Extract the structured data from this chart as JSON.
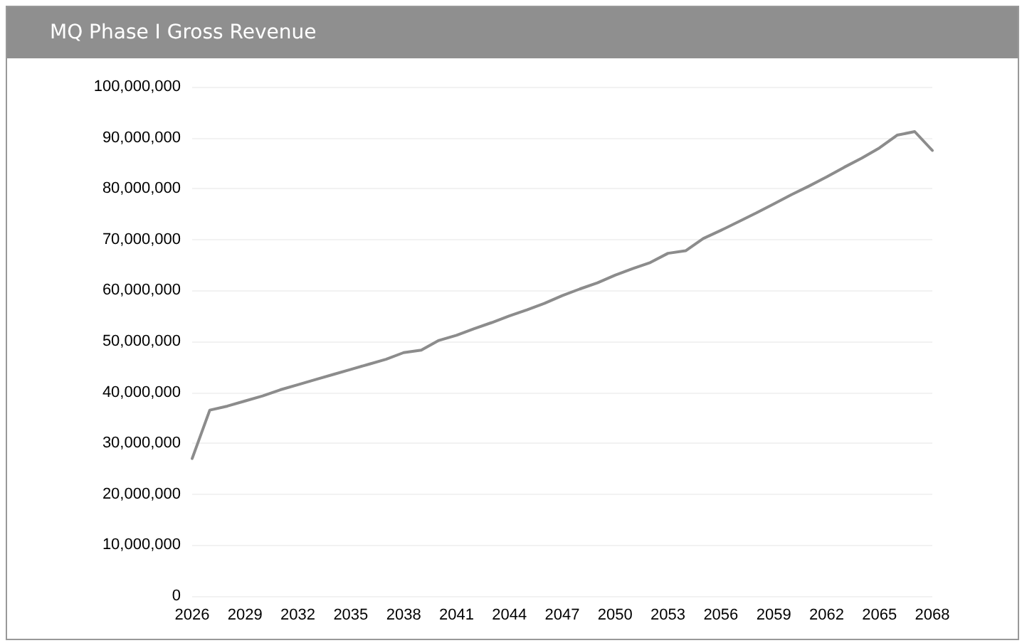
{
  "chart_data": {
    "type": "line",
    "title": "MQ Phase I Gross Revenue",
    "categories": [
      "2026",
      null,
      null,
      "2029",
      null,
      null,
      "2032",
      null,
      null,
      "2035",
      null,
      null,
      "2038",
      null,
      null,
      "2041",
      null,
      null,
      "2044",
      null,
      null,
      "2047",
      null,
      null,
      "2050",
      null,
      null,
      "2053",
      null,
      null,
      "2056",
      null,
      null,
      "2059",
      null,
      null,
      "2062",
      null,
      null,
      "2065",
      null,
      null,
      "2068"
    ],
    "series": [
      {
        "color": "#8c8c8c",
        "values": [
          27000000,
          36500000,
          37300000,
          38300000,
          39300000,
          40500000,
          41500000,
          42500000,
          43500000,
          44500000,
          45500000,
          46500000,
          47800000,
          48300000,
          50200000,
          51200000,
          52500000,
          53700000,
          55000000,
          56200000,
          57500000,
          59000000,
          60300000,
          61500000,
          63000000,
          64300000,
          65500000,
          67300000,
          67800000,
          70200000,
          71800000,
          73500000,
          75200000,
          77000000,
          78800000,
          80500000,
          82300000,
          84200000,
          86000000,
          88000000,
          90500000,
          91200000,
          87500000
        ]
      }
    ],
    "ylim": [
      0,
      100000000
    ],
    "yticks": [
      0,
      {
        "value": 10000000,
        "label": "10,000,000"
      },
      {
        "value": 20000000,
        "label": "20,000,000"
      },
      {
        "value": 30000000,
        "label": "30,000,000"
      },
      {
        "value": 40000000,
        "label": "40,000,000"
      },
      {
        "value": 50000000,
        "label": "50,000,000"
      },
      {
        "value": 60000000,
        "label": "60,000,000"
      },
      {
        "value": 70000000,
        "label": "70,000,000"
      },
      {
        "value": 80000000,
        "label": "80,000,000"
      },
      {
        "value": 90000000,
        "label": "90,000,000"
      },
      {
        "value": 100000000,
        "label": "100,000,000"
      }
    ],
    "grid": "y",
    "marker": "none",
    "line_style": "solid"
  }
}
